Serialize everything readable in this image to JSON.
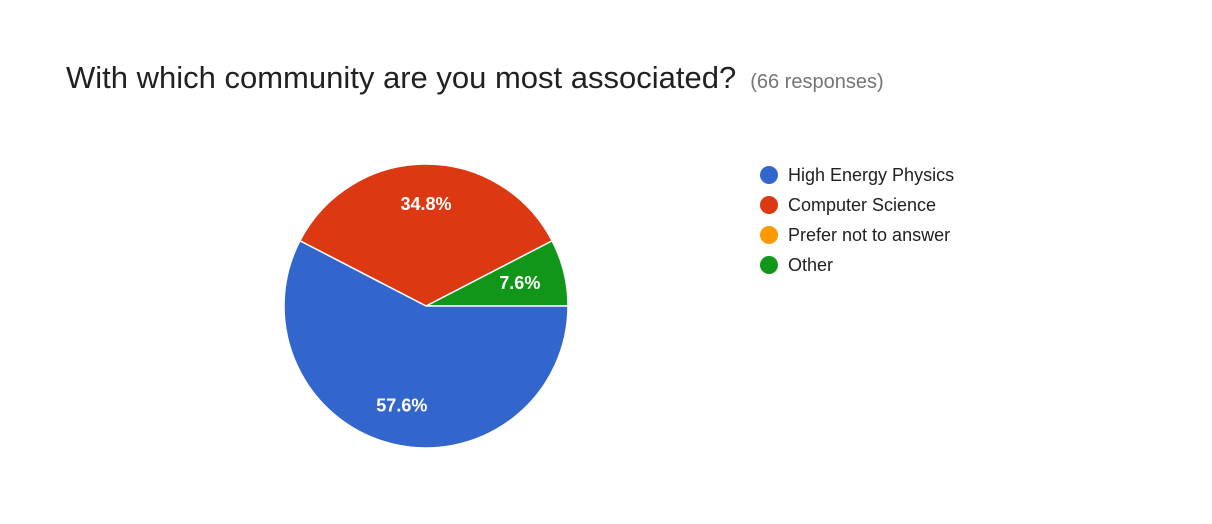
{
  "header": {
    "title": "With which community are you most associated?",
    "responses": "(66 responses)"
  },
  "chart_data": {
    "type": "pie",
    "title": "With which community are you most associated?",
    "subtitle": "(66 responses)",
    "legend_position": "right",
    "slices": [
      {
        "name": "High Energy Physics",
        "value": 57.6,
        "label": "57.6%",
        "color": "#3366cc"
      },
      {
        "name": "Computer Science",
        "value": 34.8,
        "label": "34.8%",
        "color": "#dc3912"
      },
      {
        "name": "Prefer not to answer",
        "value": 0,
        "label": "",
        "color": "#ff9900"
      },
      {
        "name": "Other",
        "value": 7.6,
        "label": "7.6%",
        "color": "#109618"
      }
    ]
  }
}
